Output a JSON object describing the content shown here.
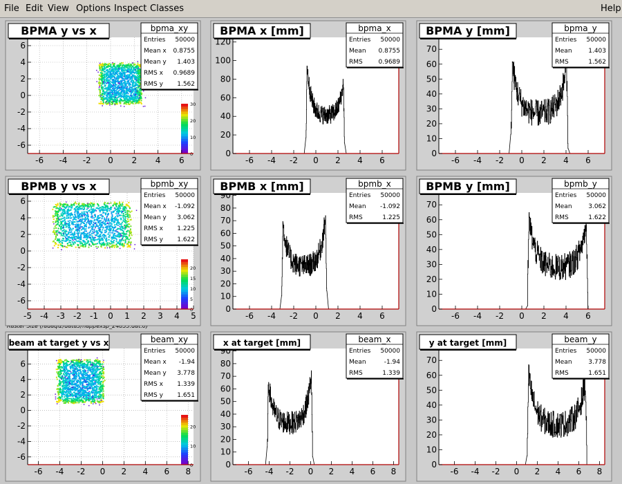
{
  "menu": {
    "file": "File",
    "edit": "Edit",
    "view": "View",
    "options": "Options",
    "inspect": "Inspect",
    "classes": "Classes",
    "help": "Help"
  },
  "caption": "Raster Size (/adaql2/data3/happexsp_24853.dat.0)",
  "colors": {
    "frame_bg": "#d0d0d0",
    "plot_bg": "#ffffff",
    "axis_red": "#b00000",
    "hist_line": "#000000"
  },
  "chart_data": [
    {
      "type": "heatmap",
      "title": "BPMA y vs x",
      "stats_name": "bpma_xy",
      "stats": [
        [
          "Entries",
          "50000"
        ],
        [
          "Mean x",
          "0.8755"
        ],
        [
          "Mean y",
          "1.403"
        ],
        [
          "RMS x",
          "0.9689"
        ],
        [
          "RMS y",
          "1.562"
        ]
      ],
      "xlim": [
        -7,
        7
      ],
      "ylim": [
        -7,
        7
      ],
      "xticks": [
        -6,
        -4,
        -2,
        0,
        2,
        4,
        6
      ],
      "yticks": [
        -6,
        -4,
        -2,
        0,
        2,
        4,
        6
      ],
      "region": {
        "x0": -0.9,
        "x1": 2.6,
        "y0": -1.0,
        "y1": 3.8
      },
      "palette_ticks": [
        0,
        10,
        20,
        30
      ],
      "palette_max": 30
    },
    {
      "type": "bar",
      "title": "BPMA x [mm]",
      "stats_name": "bpma_x",
      "stats": [
        [
          "Entries",
          "50000"
        ],
        [
          "Mean",
          "0.8755"
        ],
        [
          "RMS",
          "0.9689"
        ]
      ],
      "xlim": [
        -7.5,
        7.5
      ],
      "ylim": [
        0,
        125
      ],
      "xticks": [
        -6,
        -4,
        -2,
        0,
        2,
        4,
        6
      ],
      "yticks": [
        0,
        20,
        40,
        60,
        80,
        100,
        120
      ],
      "shape": {
        "x0": -0.9,
        "x1": 2.6,
        "edge_left": 112,
        "edge_right": 88,
        "floor": 40,
        "noise": 10
      }
    },
    {
      "type": "bar",
      "title": "BPMA y [mm]",
      "stats_name": "bpma_y",
      "stats": [
        [
          "Entries",
          "50000"
        ],
        [
          "Mean",
          "1.403"
        ],
        [
          "RMS",
          "1.562"
        ]
      ],
      "xlim": [
        -7.5,
        7.5
      ],
      "ylim": [
        0,
        78
      ],
      "xticks": [
        -6,
        -4,
        -2,
        0,
        2,
        4,
        6
      ],
      "yticks": [
        0,
        10,
        20,
        30,
        40,
        50,
        60,
        70
      ],
      "shape": {
        "x0": -1.0,
        "x1": 4.2,
        "edge_left": 70,
        "edge_right": 70,
        "floor": 26,
        "noise": 9
      }
    },
    {
      "type": "heatmap",
      "title": "BPMB y vs x",
      "stats_name": "bpmb_xy",
      "stats": [
        [
          "Entries",
          "50000"
        ],
        [
          "Mean x",
          "-1.092"
        ],
        [
          "Mean y",
          "3.062"
        ],
        [
          "RMS x",
          "1.225"
        ],
        [
          "RMS y",
          "1.622"
        ]
      ],
      "xlim": [
        -5,
        5
      ],
      "ylim": [
        -7,
        7
      ],
      "xticks": [
        -5,
        -4,
        -3,
        -2,
        -1,
        0,
        1,
        2,
        3,
        4,
        5
      ],
      "yticks": [
        -6,
        -4,
        -2,
        0,
        2,
        4,
        6
      ],
      "region": {
        "x0": -3.4,
        "x1": 1.2,
        "y0": 0.5,
        "y1": 5.8
      },
      "palette_ticks": [
        0,
        5,
        10,
        15,
        20
      ],
      "palette_max": 24
    },
    {
      "type": "bar",
      "title": "BPMB x [mm]",
      "stats_name": "bpmb_x",
      "stats": [
        [
          "Entries",
          "50000"
        ],
        [
          "Mean",
          "-1.092"
        ],
        [
          "RMS",
          "1.225"
        ]
      ],
      "xlim": [
        -7.5,
        7.5
      ],
      "ylim": [
        0,
        92
      ],
      "xticks": [
        -6,
        -4,
        -2,
        0,
        2,
        4,
        6
      ],
      "yticks": [
        0,
        10,
        20,
        30,
        40,
        50,
        60,
        70,
        80,
        90
      ],
      "shape": {
        "x0": -3.1,
        "x1": 1.0,
        "edge_left": 78,
        "edge_right": 86,
        "floor": 33,
        "noise": 9
      }
    },
    {
      "type": "bar",
      "title": "BPMB y [mm]",
      "stats_name": "bpmb_y",
      "stats": [
        [
          "Entries",
          "50000"
        ],
        [
          "Mean",
          "3.062"
        ],
        [
          "RMS",
          "1.622"
        ]
      ],
      "xlim": [
        -7.5,
        7.5
      ],
      "ylim": [
        0,
        78
      ],
      "xticks": [
        -6,
        -4,
        -2,
        0,
        2,
        4,
        6
      ],
      "yticks": [
        0,
        10,
        20,
        30,
        40,
        50,
        60,
        70
      ],
      "shape": {
        "x0": 0.5,
        "x1": 6.0,
        "edge_left": 70,
        "edge_right": 68,
        "floor": 27,
        "noise": 9
      }
    },
    {
      "type": "heatmap",
      "title": "beam at target y vs x",
      "stats_name": "beam_xy",
      "stats": [
        [
          "Entries",
          "50000"
        ],
        [
          "Mean x",
          "-1.94"
        ],
        [
          "Mean y",
          "3.778"
        ],
        [
          "RMS x",
          "1.339"
        ],
        [
          "RMS y",
          "1.651"
        ]
      ],
      "xlim": [
        -7,
        8.5
      ],
      "ylim": [
        -7,
        8
      ],
      "xticks": [
        -6,
        -4,
        -2,
        0,
        2,
        4,
        6,
        8
      ],
      "yticks": [
        -6,
        -4,
        -2,
        0,
        2,
        4,
        6
      ],
      "region": {
        "x0": -4.2,
        "x1": 0.1,
        "y0": 1.0,
        "y1": 6.5
      },
      "palette_ticks": [
        0,
        10,
        20
      ],
      "palette_max": 26
    },
    {
      "type": "bar",
      "title": "x at target [mm]",
      "stats_name": "beam_x",
      "stats": [
        [
          "Entries",
          "50000"
        ],
        [
          "Mean",
          "-1.94"
        ],
        [
          "RMS",
          "1.339"
        ]
      ],
      "xlim": [
        -7.5,
        8.5
      ],
      "ylim": [
        0,
        92
      ],
      "xticks": [
        -6,
        -4,
        -2,
        0,
        2,
        4,
        6,
        8
      ],
      "yticks": [
        0,
        10,
        20,
        30,
        40,
        50,
        60,
        70,
        80,
        90
      ],
      "shape": {
        "x0": -4.2,
        "x1": 0.2,
        "edge_left": 74,
        "edge_right": 84,
        "floor": 32,
        "noise": 9
      }
    },
    {
      "type": "bar",
      "title": "y at target [mm]",
      "stats_name": "beam_y",
      "stats": [
        [
          "Entries",
          "50000"
        ],
        [
          "Mean",
          "3.778"
        ],
        [
          "RMS",
          "1.651"
        ]
      ],
      "xlim": [
        -7.5,
        8.5
      ],
      "ylim": [
        0,
        78
      ],
      "xticks": [
        -6,
        -4,
        -2,
        0,
        2,
        4,
        6,
        8
      ],
      "yticks": [
        0,
        10,
        20,
        30,
        40,
        50,
        60,
        70
      ],
      "shape": {
        "x0": 1.0,
        "x1": 6.8,
        "edge_left": 70,
        "edge_right": 66,
        "floor": 26,
        "noise": 9
      }
    }
  ]
}
